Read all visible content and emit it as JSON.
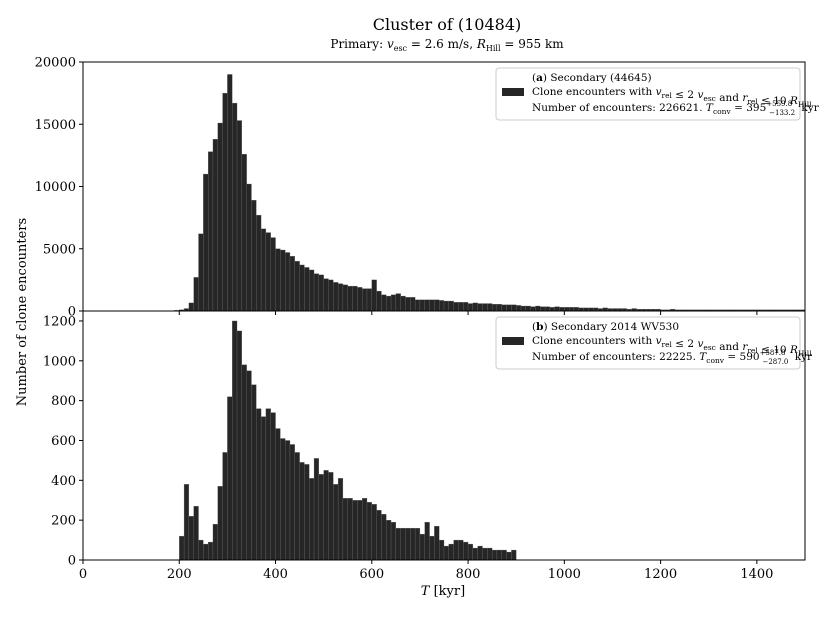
{
  "chart_data": {
    "type": "bar",
    "title": "Cluster of (10484)",
    "subtitle": "Primary: v_esc = 2.6 m/s, R_Hill = 955 km",
    "xlabel": "T [kyr]",
    "ylabel": "Number of clone encounters",
    "xlim": [
      0,
      1500
    ],
    "xticks": [
      0,
      200,
      400,
      600,
      800,
      1000,
      1200,
      1400
    ],
    "bin_width": 10,
    "bar_color": "#262626",
    "panels": [
      {
        "legend_title_tag": "a",
        "legend_title_rest": "Secondary (44645)",
        "legend_line2": "Clone encounters with v_rel ≤ 2 v_esc and r_rel ≤ 10 R_Hill",
        "legend_line3": "Number of encounters: 226621. T_conv = 395 (+559.8 / −133.2) kyr",
        "ylim": [
          0,
          20000
        ],
        "yticks": [
          0,
          5000,
          10000,
          15000,
          20000
        ],
        "x_start": 0,
        "values": [
          0,
          0,
          0,
          0,
          0,
          0,
          0,
          0,
          0,
          0,
          0,
          0,
          0,
          0,
          0,
          0,
          0,
          0,
          20,
          60,
          100,
          200,
          650,
          2700,
          6200,
          11000,
          12800,
          13800,
          15100,
          17500,
          19000,
          16700,
          15300,
          12600,
          10200,
          8900,
          7700,
          6600,
          6300,
          5900,
          5000,
          4900,
          4700,
          4400,
          4000,
          3700,
          3500,
          3300,
          3000,
          2900,
          2600,
          2500,
          2300,
          2200,
          2100,
          2000,
          2000,
          1900,
          1800,
          1800,
          2500,
          1600,
          1300,
          1200,
          1300,
          1400,
          1200,
          1100,
          1100,
          900,
          900,
          900,
          900,
          900,
          850,
          800,
          800,
          700,
          700,
          700,
          600,
          650,
          600,
          600,
          600,
          550,
          550,
          500,
          500,
          500,
          450,
          400,
          400,
          350,
          400,
          350,
          350,
          300,
          350,
          300,
          300,
          300,
          300,
          250,
          250,
          250,
          250,
          200,
          250,
          200,
          200,
          200,
          200,
          150,
          200,
          150,
          150,
          150,
          150,
          150,
          100,
          100,
          150,
          100,
          100,
          100,
          100,
          100,
          100,
          100,
          100,
          100,
          100,
          100,
          100,
          100,
          100,
          100,
          100,
          100,
          100,
          100,
          100,
          100,
          100,
          100,
          100,
          100,
          100,
          100
        ],
        "values_note_hidden": ""
      },
      {
        "legend_title_tag": "b",
        "legend_title_rest": "Secondary 2014 WV530",
        "legend_line2": "Clone encounters with v_rel ≤ 2 v_esc and r_rel ≤ 10 R_Hill",
        "legend_line3": "Number of encounters: 22225. T_conv = 590 (+587.8 / −287.0) kyr",
        "ylim": [
          0,
          1250
        ],
        "yticks": [
          0,
          200,
          400,
          600,
          800,
          1000,
          1200
        ],
        "x_start": 0,
        "values": [
          0,
          0,
          0,
          0,
          0,
          0,
          0,
          0,
          0,
          0,
          0,
          0,
          0,
          0,
          0,
          0,
          0,
          0,
          0,
          0,
          120,
          380,
          220,
          270,
          100,
          80,
          90,
          180,
          370,
          540,
          820,
          1200,
          1150,
          980,
          950,
          880,
          760,
          720,
          760,
          740,
          660,
          610,
          600,
          580,
          540,
          490,
          480,
          410,
          510,
          430,
          450,
          440,
          380,
          410,
          310,
          310,
          300,
          300,
          310,
          290,
          280,
          250,
          230,
          200,
          190,
          160,
          160,
          160,
          160,
          160,
          130,
          190,
          120,
          170,
          100,
          70,
          80,
          100,
          100,
          90,
          80,
          60,
          70,
          60,
          60,
          50,
          50,
          50,
          40,
          50
        ]
      }
    ]
  }
}
